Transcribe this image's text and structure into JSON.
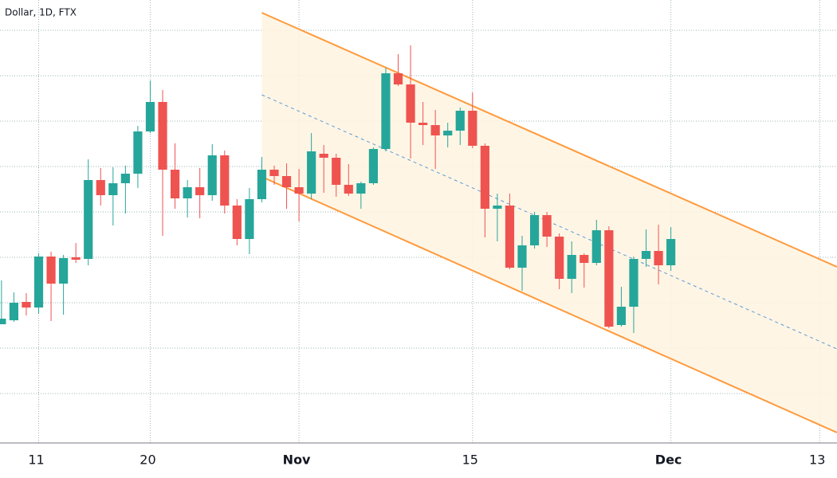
{
  "chart_data": {
    "type": "candlestick",
    "title": "Dollar, 1D, FTX",
    "x": [
      7,
      8,
      9,
      10,
      11,
      12,
      13,
      14,
      15,
      16,
      17,
      18,
      19,
      20,
      21,
      22,
      23,
      24,
      25,
      26,
      27,
      28,
      29,
      30,
      31,
      32,
      33,
      34,
      35,
      36,
      37,
      38,
      39,
      40,
      41,
      42,
      43,
      44,
      45,
      46,
      47,
      48,
      49,
      50,
      51,
      52,
      53,
      54,
      55,
      56,
      57,
      58,
      59,
      60,
      61
    ],
    "open": [
      144,
      149,
      172,
      165,
      229,
      195,
      228,
      226,
      325,
      306,
      321,
      333,
      386,
      423,
      338,
      302,
      316,
      306,
      356,
      293,
      251,
      301,
      338,
      330,
      316,
      308,
      358,
      353,
      319,
      308,
      321,
      364,
      459,
      445,
      397,
      394,
      381,
      387,
      412,
      368,
      289,
      293,
      215,
      243,
      281,
      254,
      201,
      231,
      221,
      262,
      143,
      166,
      226,
      236,
      218
    ],
    "high": [
      199,
      184,
      183,
      233,
      235,
      231,
      246,
      351,
      340,
      341,
      343,
      393,
      450,
      438,
      371,
      325,
      340,
      370,
      362,
      301,
      315,
      354,
      343,
      346,
      339,
      384,
      369,
      358,
      345,
      323,
      366,
      466,
      483,
      494,
      423,
      413,
      397,
      416,
      435,
      371,
      308,
      308,
      255,
      285,
      285,
      258,
      248,
      233,
      275,
      267,
      191,
      229,
      263,
      269,
      266
    ],
    "low": [
      144,
      147,
      155,
      157,
      148,
      156,
      221,
      218,
      293,
      268,
      283,
      315,
      384,
      255,
      289,
      278,
      277,
      299,
      283,
      243,
      232,
      297,
      319,
      289,
      273,
      301,
      309,
      304,
      305,
      289,
      319,
      361,
      443,
      352,
      369,
      339,
      366,
      369,
      365,
      253,
      248,
      213,
      186,
      239,
      241,
      188,
      183,
      190,
      218,
      139,
      141,
      133,
      216,
      194,
      211
    ],
    "close": [
      151,
      171,
      165,
      229,
      195,
      227,
      225,
      325,
      306,
      321,
      333,
      386,
      423,
      338,
      302,
      316,
      306,
      356,
      293,
      251,
      301,
      338,
      330,
      316,
      308,
      361,
      353,
      319,
      308,
      321,
      364,
      459,
      445,
      397,
      394,
      381,
      387,
      412,
      368,
      289,
      293,
      215,
      243,
      281,
      254,
      201,
      231,
      221,
      262,
      141,
      166,
      226,
      236,
      218,
      251
    ],
    "up_color": "#26a69a",
    "down_color": "#ef5350",
    "xlim": [
      6.88,
      74.4
    ],
    "xticks": [
      {
        "value": 10,
        "label": "11"
      },
      {
        "value": 19,
        "label": "20"
      },
      {
        "value": 31,
        "label": "Nov"
      },
      {
        "value": 45,
        "label": "15"
      },
      {
        "value": 61,
        "label": "Dec"
      },
      {
        "value": 73,
        "label": "13"
      }
    ],
    "ylim": [
      -6,
      551
    ],
    "yticks": [
      57,
      114,
      171,
      228,
      285,
      342,
      399,
      456,
      513
    ],
    "grid": true,
    "channel": {
      "x": [
        28,
        74.4
      ],
      "upper": [
        535,
        216
      ],
      "middle": [
        432,
        113
      ],
      "lower": [
        329,
        8
      ],
      "color": "#ff9a3c",
      "middle_color": "#5b9bd5",
      "fill": "#fff3e0"
    }
  }
}
